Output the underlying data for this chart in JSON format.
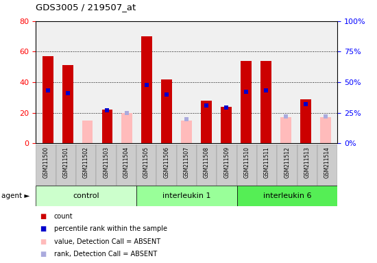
{
  "title": "GDS3005 / 219507_at",
  "samples": [
    "GSM211500",
    "GSM211501",
    "GSM211502",
    "GSM211503",
    "GSM211504",
    "GSM211505",
    "GSM211506",
    "GSM211507",
    "GSM211508",
    "GSM211509",
    "GSM211510",
    "GSM211511",
    "GSM211512",
    "GSM211513",
    "GSM211514"
  ],
  "count_present": [
    57,
    51,
    0,
    22,
    0,
    70,
    42,
    0,
    28,
    24,
    54,
    54,
    0,
    29,
    0
  ],
  "count_absent": [
    0,
    0,
    15,
    0,
    20,
    0,
    0,
    15,
    0,
    0,
    0,
    0,
    17,
    0,
    17
  ],
  "rank_present": [
    43,
    41,
    0,
    27,
    0,
    48,
    40,
    0,
    31,
    29,
    42,
    43,
    0,
    32,
    0
  ],
  "rank_absent": [
    0,
    0,
    0,
    0,
    25,
    0,
    0,
    20,
    0,
    0,
    0,
    0,
    22,
    0,
    22
  ],
  "groups": [
    {
      "label": "control",
      "start": 0,
      "end": 5,
      "color": "#ccffcc"
    },
    {
      "label": "interleukin 1",
      "start": 5,
      "end": 10,
      "color": "#99ff99"
    },
    {
      "label": "interleukin 6",
      "start": 10,
      "end": 15,
      "color": "#55ee55"
    }
  ],
  "ylim_left": [
    0,
    80
  ],
  "ylim_right": [
    0,
    100
  ],
  "yticks_left": [
    0,
    20,
    40,
    60,
    80
  ],
  "yticks_right": [
    0,
    25,
    50,
    75,
    100
  ],
  "color_count_present": "#cc0000",
  "color_count_absent": "#ffbbbb",
  "color_rank_present": "#0000cc",
  "color_rank_absent": "#aaaadd",
  "bar_width": 0.55,
  "grid_color": "black",
  "bg_plot": "#f0f0f0",
  "tick_bg": "#cccccc",
  "legend_items": [
    {
      "color": "#cc0000",
      "marker": "s",
      "label": "count"
    },
    {
      "color": "#0000cc",
      "marker": "s",
      "label": "percentile rank within the sample"
    },
    {
      "color": "#ffbbbb",
      "marker": "s",
      "label": "value, Detection Call = ABSENT"
    },
    {
      "color": "#aaaadd",
      "marker": "s",
      "label": "rank, Detection Call = ABSENT"
    }
  ]
}
